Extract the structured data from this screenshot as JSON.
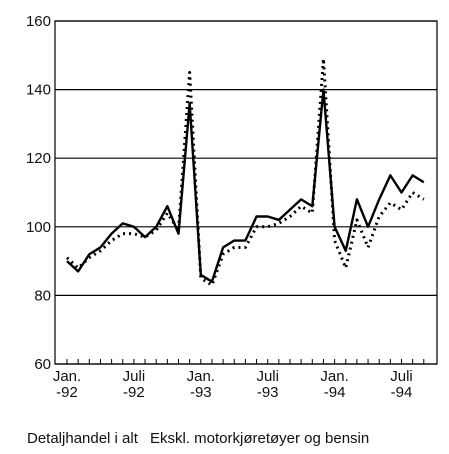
{
  "chart_data": {
    "type": "line",
    "categories": [
      "Jan. -92",
      null,
      null,
      null,
      null,
      null,
      "Juli -92",
      null,
      null,
      null,
      null,
      null,
      "Jan. -93",
      null,
      null,
      null,
      null,
      null,
      "Juli -93",
      null,
      null,
      null,
      null,
      null,
      "Jan. -94",
      null,
      null,
      null,
      null,
      null,
      "Juli -94",
      null,
      null
    ],
    "series": [
      {
        "name": "Detaljhandel i alt",
        "color": "#000000",
        "dash": "solid",
        "values": [
          90,
          87,
          92,
          94,
          98,
          101,
          100,
          97,
          100,
          106,
          98,
          136,
          86,
          84,
          94,
          96,
          96,
          103,
          103,
          102,
          105,
          108,
          106,
          140,
          100,
          93,
          108,
          100,
          108,
          115,
          110,
          115,
          113
        ]
      },
      {
        "name": "Ekskl. motorkjøretøyer og bensin",
        "color": "#000000",
        "dash": "dotted",
        "values": [
          91,
          88,
          91,
          93,
          96,
          98,
          98,
          97,
          99,
          104,
          99,
          145,
          85,
          83,
          92,
          94,
          94,
          100,
          100,
          101,
          103,
          106,
          104,
          149,
          96,
          88,
          102,
          94,
          103,
          107,
          105,
          110,
          108
        ]
      }
    ],
    "ylim": [
      60,
      160
    ],
    "yticks": [
      60,
      80,
      100,
      120,
      140,
      160
    ],
    "grid": true
  }
}
